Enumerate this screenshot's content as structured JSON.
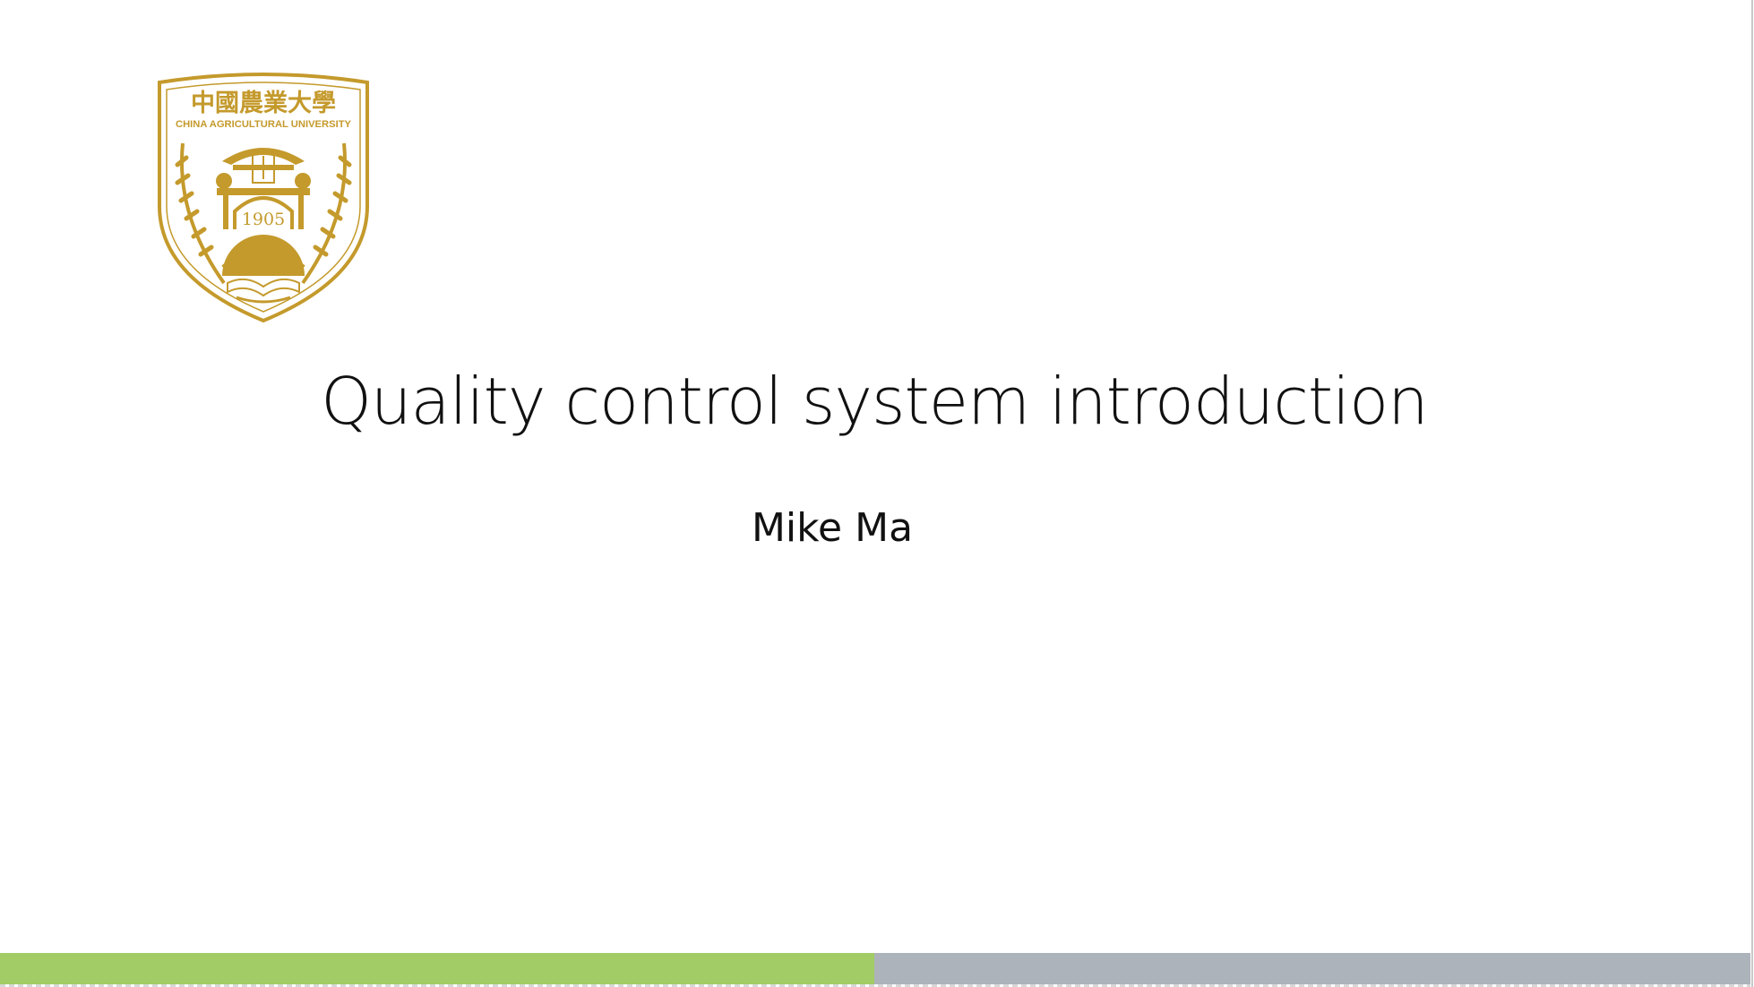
{
  "slide": {
    "logo": {
      "name_cn": "中國農業大學",
      "name_en": "CHINA AGRICULTURAL UNIVERSITY",
      "year": "1905",
      "color": "#C49A2C"
    },
    "title": "Quality control system introduction",
    "subtitle": "Mike Ma"
  },
  "theme": {
    "bar_left_color": "#A2CC66",
    "bar_right_color": "#ADB3BB"
  }
}
